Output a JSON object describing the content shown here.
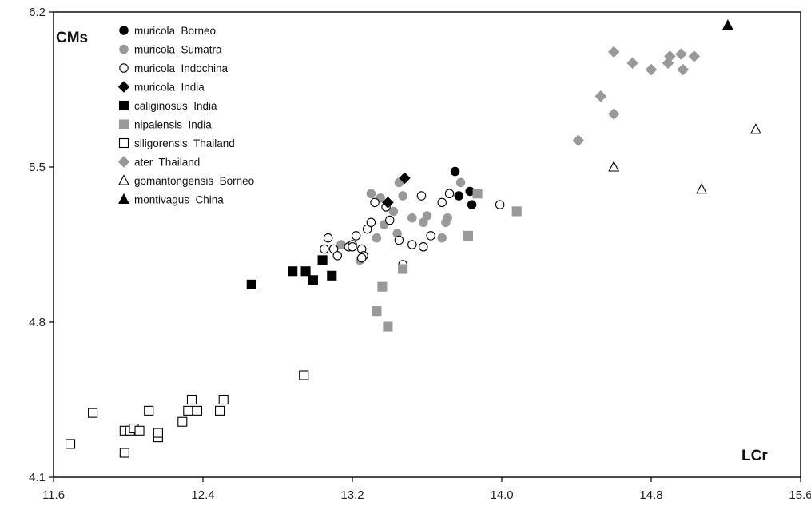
{
  "chart_data": {
    "type": "scatter",
    "xlabel": "LCr",
    "ylabel": "CMs",
    "xlim": [
      11.6,
      15.6
    ],
    "ylim": [
      4.1,
      6.2
    ],
    "x_ticks": [
      "11.6",
      "12.4",
      "13.2",
      "14.0",
      "14.8",
      "15.6"
    ],
    "y_ticks": [
      "4.1",
      "4.8",
      "5.5",
      "6.2"
    ],
    "grid": false,
    "legend_position": "top-left",
    "series": [
      {
        "name": "muricola  Borneo",
        "marker": "circle",
        "fill": "#000000",
        "stroke": "#000000",
        "points": [
          [
            13.75,
            5.48
          ],
          [
            13.77,
            5.37
          ],
          [
            13.83,
            5.39
          ],
          [
            13.84,
            5.33
          ]
        ]
      },
      {
        "name": "muricola  Sumatra",
        "marker": "circle",
        "fill": "#999999",
        "stroke": "#999999",
        "points": [
          [
            13.3,
            5.38
          ],
          [
            13.24,
            5.08
          ],
          [
            13.33,
            5.18
          ],
          [
            13.37,
            5.24
          ],
          [
            13.42,
            5.3
          ],
          [
            13.45,
            5.43
          ],
          [
            13.47,
            5.37
          ],
          [
            13.44,
            5.2
          ],
          [
            13.52,
            5.27
          ],
          [
            13.6,
            5.28
          ],
          [
            13.58,
            5.25
          ],
          [
            13.7,
            5.25
          ],
          [
            13.71,
            5.27
          ],
          [
            13.68,
            5.18
          ],
          [
            13.78,
            5.43
          ],
          [
            13.14,
            5.15
          ],
          [
            13.35,
            5.36
          ]
        ]
      },
      {
        "name": "muricola  Indochina",
        "marker": "circle",
        "fill": "#ffffff",
        "stroke": "#000000",
        "points": [
          [
            13.07,
            5.18
          ],
          [
            13.05,
            5.13
          ],
          [
            13.1,
            5.13
          ],
          [
            13.12,
            5.1
          ],
          [
            13.18,
            5.14
          ],
          [
            13.2,
            5.15
          ],
          [
            13.22,
            5.19
          ],
          [
            13.25,
            5.13
          ],
          [
            13.26,
            5.1
          ],
          [
            13.28,
            5.22
          ],
          [
            13.3,
            5.25
          ],
          [
            13.32,
            5.34
          ],
          [
            13.38,
            5.32
          ],
          [
            13.4,
            5.26
          ],
          [
            13.45,
            5.17
          ],
          [
            13.47,
            5.06
          ],
          [
            13.52,
            5.15
          ],
          [
            13.57,
            5.37
          ],
          [
            13.58,
            5.14
          ],
          [
            13.62,
            5.19
          ],
          [
            13.68,
            5.34
          ],
          [
            13.72,
            5.38
          ],
          [
            13.99,
            5.33
          ],
          [
            13.25,
            5.09
          ],
          [
            13.2,
            5.14
          ]
        ]
      },
      {
        "name": "muricola  India",
        "marker": "diamond",
        "fill": "#000000",
        "stroke": "#000000",
        "points": [
          [
            13.39,
            5.34
          ],
          [
            13.48,
            5.45
          ]
        ]
      },
      {
        "name": "caliginosus  India",
        "marker": "square",
        "fill": "#000000",
        "stroke": "#000000",
        "points": [
          [
            12.66,
            4.97
          ],
          [
            12.88,
            5.03
          ],
          [
            12.95,
            5.03
          ],
          [
            12.99,
            4.99
          ],
          [
            13.04,
            5.08
          ],
          [
            13.09,
            5.01
          ]
        ]
      },
      {
        "name": "nipalensis  India",
        "marker": "square",
        "fill": "#999999",
        "stroke": "#999999",
        "points": [
          [
            13.33,
            4.85
          ],
          [
            13.36,
            4.96
          ],
          [
            13.39,
            4.78
          ],
          [
            13.47,
            5.04
          ],
          [
            13.82,
            5.19
          ],
          [
            13.87,
            5.38
          ],
          [
            14.08,
            5.3
          ]
        ]
      },
      {
        "name": "siligorensis  Thailand",
        "marker": "square",
        "fill": "#ffffff",
        "stroke": "#000000",
        "points": [
          [
            11.69,
            4.25
          ],
          [
            11.81,
            4.39
          ],
          [
            11.98,
            4.21
          ],
          [
            11.98,
            4.31
          ],
          [
            12.01,
            4.31
          ],
          [
            12.03,
            4.32
          ],
          [
            12.06,
            4.31
          ],
          [
            12.11,
            4.4
          ],
          [
            12.16,
            4.28
          ],
          [
            12.16,
            4.3
          ],
          [
            12.29,
            4.35
          ],
          [
            12.32,
            4.4
          ],
          [
            12.34,
            4.45
          ],
          [
            12.37,
            4.4
          ],
          [
            12.49,
            4.4
          ],
          [
            12.51,
            4.45
          ],
          [
            12.94,
            4.56
          ]
        ]
      },
      {
        "name": "ater  Thailand",
        "marker": "diamond",
        "fill": "#999999",
        "stroke": "#999999",
        "points": [
          [
            14.41,
            5.62
          ],
          [
            14.53,
            5.82
          ],
          [
            14.6,
            5.74
          ],
          [
            14.6,
            6.02
          ],
          [
            14.7,
            5.97
          ],
          [
            14.8,
            5.94
          ],
          [
            14.89,
            5.97
          ],
          [
            14.9,
            6.0
          ],
          [
            14.96,
            6.01
          ],
          [
            14.97,
            5.94
          ],
          [
            15.03,
            6.0
          ]
        ]
      },
      {
        "name": "gomantongensis  Borneo",
        "marker": "triangle",
        "fill": "#ffffff",
        "stroke": "#000000",
        "points": [
          [
            14.6,
            5.5
          ],
          [
            15.07,
            5.4
          ],
          [
            15.36,
            5.67
          ]
        ]
      },
      {
        "name": "montivagus  China",
        "marker": "triangle",
        "fill": "#000000",
        "stroke": "#000000",
        "points": [
          [
            15.21,
            6.14
          ]
        ]
      }
    ]
  }
}
